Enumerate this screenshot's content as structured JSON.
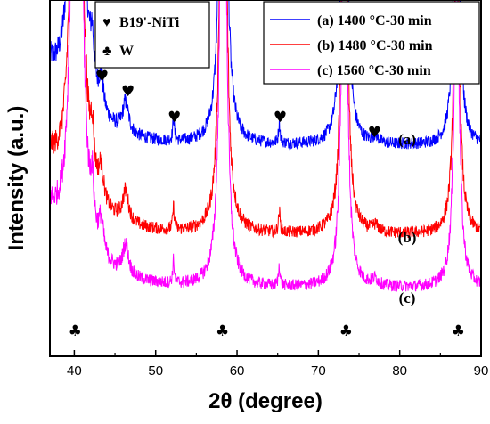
{
  "chart_data": {
    "type": "line",
    "xlabel": "2θ (degree)",
    "ylabel": "Intensity (a.u.)",
    "xlim": [
      37,
      90
    ],
    "x_ticks": [
      "40",
      "50",
      "60",
      "70",
      "80",
      "90"
    ],
    "y_ticks_shown": false,
    "grid": false,
    "series": [
      {
        "name": "(a) 1400 °C-30 min",
        "label": "(a)",
        "color": "#0000ff",
        "offset": 200
      },
      {
        "name": "(b) 1480 °C-30 min",
        "label": "(b)",
        "color": "#ff0000",
        "offset": 100
      },
      {
        "name": "(c)  1560 °C-30 min",
        "label": "(c)",
        "color": "#ff00ff",
        "offset": 40
      }
    ],
    "peaks": {
      "w": [
        40.3,
        58.3,
        73.2,
        87.0
      ],
      "b19_niti": [
        42.2,
        43.3,
        46.3,
        52.2,
        65.2,
        77.0
      ]
    },
    "phase_legend": [
      {
        "symbol": "♥",
        "label": "B19'-NiTi"
      },
      {
        "symbol": "♣",
        "label": "W"
      }
    ],
    "markers": {
      "b19_niti": {
        "symbol": "♥",
        "x": [
          43.4,
          46.6,
          52.3,
          65.3,
          76.9
        ]
      },
      "w": {
        "symbol": "♣",
        "x": [
          40.1,
          58.2,
          73.4,
          87.2
        ]
      }
    },
    "legend_position": "top-right"
  }
}
